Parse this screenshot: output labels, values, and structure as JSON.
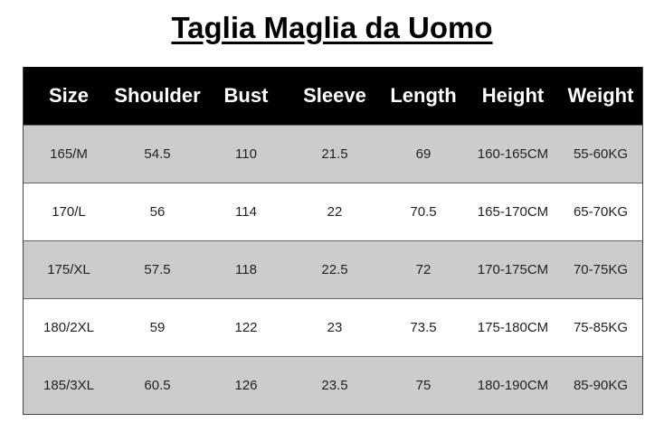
{
  "title": "Taglia Maglia da Uomo",
  "table": {
    "headers": [
      "Size",
      "Shoulder",
      "Bust",
      "Sleeve",
      "Length",
      "Height",
      "Weight"
    ],
    "rows": [
      [
        "165/M",
        "54.5",
        "110",
        "21.5",
        "69",
        "160-165CM",
        "55-60KG"
      ],
      [
        "170/L",
        "56",
        "114",
        "22",
        "70.5",
        "165-170CM",
        "65-70KG"
      ],
      [
        "175/XL",
        "57.5",
        "118",
        "22.5",
        "72",
        "170-175CM",
        "70-75KG"
      ],
      [
        "180/2XL",
        "59",
        "122",
        "23",
        "73.5",
        "175-180CM",
        "75-85KG"
      ],
      [
        "185/3XL",
        "60.5",
        "126",
        "23.5",
        "75",
        "180-190CM",
        "85-90KG"
      ]
    ]
  },
  "colors": {
    "header_bg": "#000000",
    "row_alt_bg": "#cccccc"
  }
}
